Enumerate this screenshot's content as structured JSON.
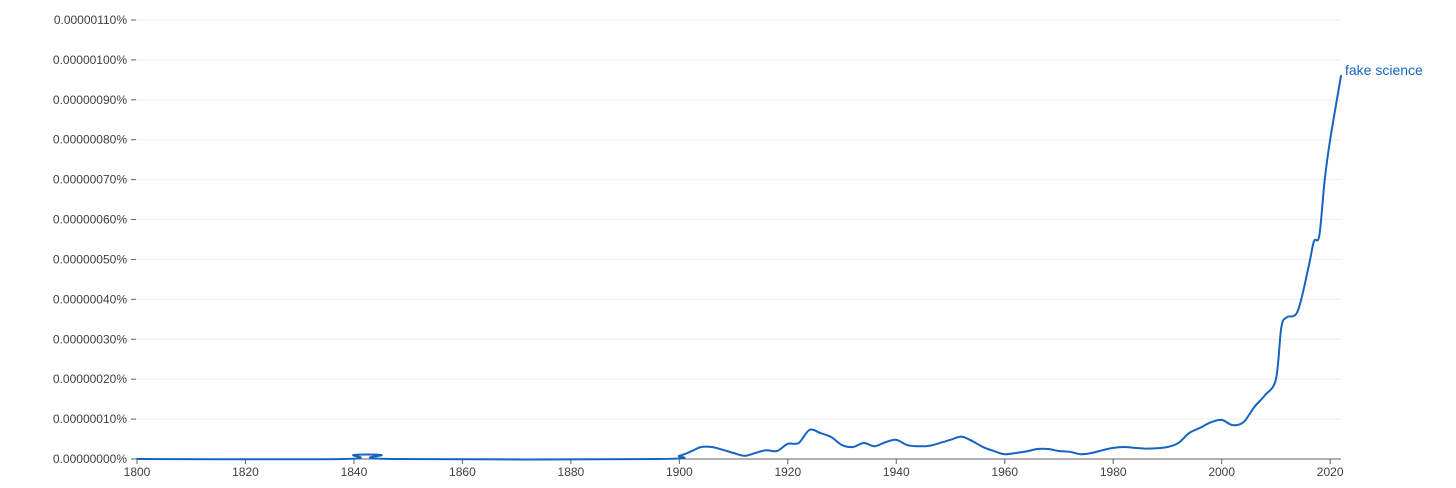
{
  "chart_data": {
    "type": "line",
    "title": "",
    "xlabel": "",
    "ylabel": "",
    "xlim": [
      1800,
      2022
    ],
    "ylim": [
      0,
      1.1e-06
    ],
    "grid": true,
    "legend": "inline-end-of-line",
    "x_ticks": [
      {
        "value": 1800,
        "label": "1800"
      },
      {
        "value": 1820,
        "label": "1820"
      },
      {
        "value": 1840,
        "label": "1840"
      },
      {
        "value": 1860,
        "label": "1860"
      },
      {
        "value": 1880,
        "label": "1880"
      },
      {
        "value": 1900,
        "label": "1900"
      },
      {
        "value": 1920,
        "label": "1920"
      },
      {
        "value": 1940,
        "label": "1940"
      },
      {
        "value": 1960,
        "label": "1960"
      },
      {
        "value": 1980,
        "label": "1980"
      },
      {
        "value": 2000,
        "label": "2000"
      },
      {
        "value": 2020,
        "label": "2020"
      }
    ],
    "y_ticks": [
      {
        "value": 0,
        "label": "0.00000000%"
      },
      {
        "value": 1e-07,
        "label": "0.00000010%"
      },
      {
        "value": 2e-07,
        "label": "0.00000020%"
      },
      {
        "value": 3e-07,
        "label": "0.00000030%"
      },
      {
        "value": 4e-07,
        "label": "0.00000040%"
      },
      {
        "value": 5e-07,
        "label": "0.00000050%"
      },
      {
        "value": 6e-07,
        "label": "0.00000060%"
      },
      {
        "value": 7e-07,
        "label": "0.00000070%"
      },
      {
        "value": 8e-07,
        "label": "0.00000080%"
      },
      {
        "value": 9e-07,
        "label": "0.00000090%"
      },
      {
        "value": 1e-06,
        "label": "0.00000100%"
      },
      {
        "value": 1.1e-06,
        "label": "0.00000110%"
      }
    ],
    "series": [
      {
        "name": "fake science",
        "color": "#1565c0",
        "points": [
          [
            1800,
            0
          ],
          [
            1838,
            0
          ],
          [
            1840,
            1e-08
          ],
          [
            1845,
            1e-08
          ],
          [
            1847,
            0
          ],
          [
            1896,
            0
          ],
          [
            1900,
            8e-09
          ],
          [
            1902,
            1.8e-08
          ],
          [
            1904,
            3e-08
          ],
          [
            1906,
            3e-08
          ],
          [
            1908,
            2.3e-08
          ],
          [
            1910,
            1.5e-08
          ],
          [
            1912,
            8e-09
          ],
          [
            1914,
            1.5e-08
          ],
          [
            1916,
            2.2e-08
          ],
          [
            1918,
            2e-08
          ],
          [
            1920,
            3.8e-08
          ],
          [
            1922,
            4e-08
          ],
          [
            1924,
            7.3e-08
          ],
          [
            1926,
            6.5e-08
          ],
          [
            1928,
            5.5e-08
          ],
          [
            1930,
            3.5e-08
          ],
          [
            1932,
            3e-08
          ],
          [
            1934,
            4e-08
          ],
          [
            1936,
            3.2e-08
          ],
          [
            1938,
            4.2e-08
          ],
          [
            1940,
            4.8e-08
          ],
          [
            1942,
            3.5e-08
          ],
          [
            1944,
            3.2e-08
          ],
          [
            1946,
            3.3e-08
          ],
          [
            1948,
            4e-08
          ],
          [
            1950,
            4.8e-08
          ],
          [
            1952,
            5.6e-08
          ],
          [
            1954,
            4.5e-08
          ],
          [
            1956,
            3e-08
          ],
          [
            1958,
            2e-08
          ],
          [
            1960,
            1.2e-08
          ],
          [
            1962,
            1.5e-08
          ],
          [
            1964,
            1.9e-08
          ],
          [
            1966,
            2.5e-08
          ],
          [
            1968,
            2.5e-08
          ],
          [
            1970,
            2e-08
          ],
          [
            1972,
            1.8e-08
          ],
          [
            1974,
            1.2e-08
          ],
          [
            1976,
            1.5e-08
          ],
          [
            1978,
            2.2e-08
          ],
          [
            1980,
            2.8e-08
          ],
          [
            1982,
            3e-08
          ],
          [
            1984,
            2.8e-08
          ],
          [
            1986,
            2.6e-08
          ],
          [
            1988,
            2.7e-08
          ],
          [
            1990,
            3e-08
          ],
          [
            1992,
            4e-08
          ],
          [
            1994,
            6.5e-08
          ],
          [
            1996,
            7.8e-08
          ],
          [
            1998,
            9.2e-08
          ],
          [
            2000,
            9.8e-08
          ],
          [
            2002,
            8.5e-08
          ],
          [
            2004,
            9.2e-08
          ],
          [
            2006,
            1.3e-07
          ],
          [
            2008,
            1.6e-07
          ],
          [
            2010,
            2e-07
          ],
          [
            2011,
            3.3e-07
          ],
          [
            2012,
            3.55e-07
          ],
          [
            2014,
            3.7e-07
          ],
          [
            2016,
            4.8e-07
          ],
          [
            2017,
            5.45e-07
          ],
          [
            2018,
            5.6e-07
          ],
          [
            2019,
            7e-07
          ],
          [
            2020,
            8e-07
          ],
          [
            2022,
            9.6e-07
          ]
        ]
      }
    ]
  }
}
